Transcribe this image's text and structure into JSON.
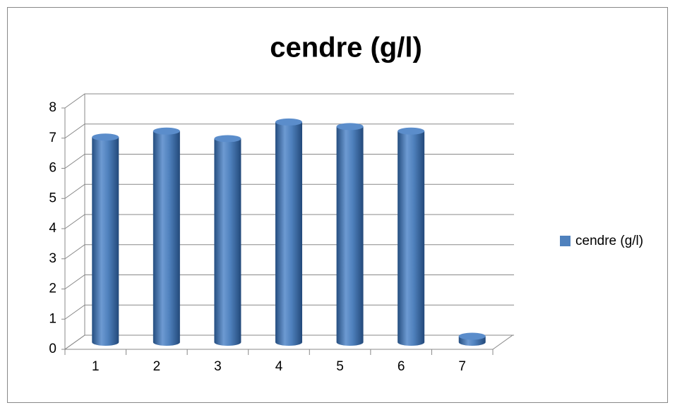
{
  "chart_data": {
    "type": "bar3d",
    "title": "cendre (g/l)",
    "categories": [
      "1",
      "2",
      "3",
      "4",
      "5",
      "6",
      "7"
    ],
    "series": [
      {
        "name": "cendre (g/l)",
        "color": "#4f81bd",
        "values": [
          6.8,
          7.0,
          6.75,
          7.3,
          7.15,
          7.0,
          0.2
        ]
      }
    ],
    "ylim": [
      0,
      8
    ],
    "yticks": [
      0,
      1,
      2,
      3,
      4,
      5,
      6,
      7,
      8
    ],
    "grid": true,
    "legend": "right"
  }
}
